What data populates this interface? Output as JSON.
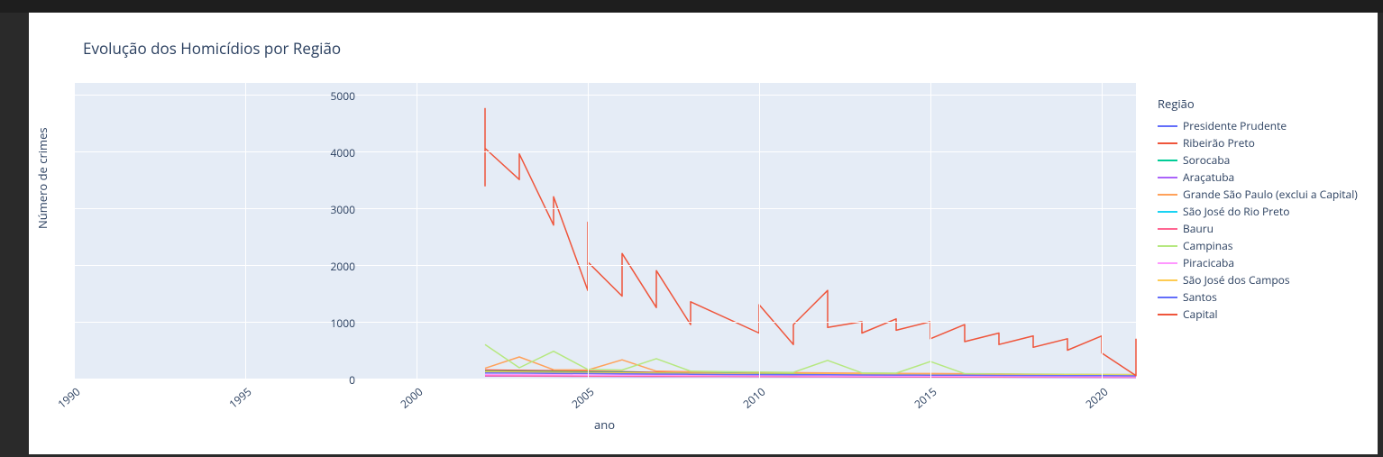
{
  "page": {
    "outer_bg": "#2a2a2a",
    "topbar_bg": "#1e1e1e",
    "card_bg": "#ffffff"
  },
  "chart": {
    "type": "line",
    "title": "Evolução dos Homicídios por Região",
    "title_color": "#2a3f5f",
    "title_fontsize": 17,
    "plot_bg": "#e5ecf6",
    "grid_color": "#ffffff",
    "tick_color": "#2a3f5f",
    "tick_fontsize": 12,
    "axis_title_fontsize": 13,
    "x_axis": {
      "title": "ano",
      "min": 1990,
      "max": 2021,
      "ticks": [
        1990,
        1995,
        2000,
        2005,
        2010,
        2015,
        2020
      ],
      "tick_rotation_deg": -40
    },
    "y_axis": {
      "title": "Número de crimes",
      "min": 0,
      "max": 5200,
      "ticks": [
        0,
        1000,
        2000,
        3000,
        4000,
        5000
      ]
    },
    "line_width": 1.5,
    "legend": {
      "title": "Região"
    },
    "series": [
      {
        "name": "Presidente Prudente",
        "color": "#636efa",
        "data": [
          {
            "x": 2002,
            "y": 55
          },
          {
            "x": 2003,
            "y": 50
          },
          {
            "x": 2004,
            "y": 48
          },
          {
            "x": 2005,
            "y": 46
          },
          {
            "x": 2006,
            "y": 45
          },
          {
            "x": 2007,
            "y": 43
          },
          {
            "x": 2008,
            "y": 42
          },
          {
            "x": 2009,
            "y": 40
          },
          {
            "x": 2010,
            "y": 38
          },
          {
            "x": 2011,
            "y": 37
          },
          {
            "x": 2012,
            "y": 36
          },
          {
            "x": 2013,
            "y": 35
          },
          {
            "x": 2014,
            "y": 33
          },
          {
            "x": 2015,
            "y": 32
          },
          {
            "x": 2016,
            "y": 30
          },
          {
            "x": 2017,
            "y": 28
          },
          {
            "x": 2018,
            "y": 27
          },
          {
            "x": 2019,
            "y": 26
          },
          {
            "x": 2020,
            "y": 25
          },
          {
            "x": 2021,
            "y": 24
          }
        ]
      },
      {
        "name": "Ribeirão Preto",
        "color": "#ef553b",
        "data": [
          {
            "x": 2002,
            "y": 150
          },
          {
            "x": 2003,
            "y": 145
          },
          {
            "x": 2004,
            "y": 140
          },
          {
            "x": 2005,
            "y": 130
          },
          {
            "x": 2006,
            "y": 120
          },
          {
            "x": 2007,
            "y": 110
          },
          {
            "x": 2008,
            "y": 100
          },
          {
            "x": 2009,
            "y": 95
          },
          {
            "x": 2010,
            "y": 90
          },
          {
            "x": 2011,
            "y": 88
          },
          {
            "x": 2012,
            "y": 85
          },
          {
            "x": 2013,
            "y": 80
          },
          {
            "x": 2014,
            "y": 75
          },
          {
            "x": 2015,
            "y": 70
          },
          {
            "x": 2016,
            "y": 65
          },
          {
            "x": 2017,
            "y": 60
          },
          {
            "x": 2018,
            "y": 58
          },
          {
            "x": 2019,
            "y": 55
          },
          {
            "x": 2020,
            "y": 52
          },
          {
            "x": 2021,
            "y": 50
          }
        ]
      },
      {
        "name": "Sorocaba",
        "color": "#00cc96",
        "data": [
          {
            "x": 2002,
            "y": 130
          },
          {
            "x": 2003,
            "y": 125
          },
          {
            "x": 2004,
            "y": 120
          },
          {
            "x": 2005,
            "y": 115
          },
          {
            "x": 2006,
            "y": 110
          },
          {
            "x": 2007,
            "y": 100
          },
          {
            "x": 2008,
            "y": 95
          },
          {
            "x": 2009,
            "y": 90
          },
          {
            "x": 2010,
            "y": 85
          },
          {
            "x": 2011,
            "y": 82
          },
          {
            "x": 2012,
            "y": 80
          },
          {
            "x": 2013,
            "y": 78
          },
          {
            "x": 2014,
            "y": 75
          },
          {
            "x": 2015,
            "y": 72
          },
          {
            "x": 2016,
            "y": 68
          },
          {
            "x": 2017,
            "y": 65
          },
          {
            "x": 2018,
            "y": 62
          },
          {
            "x": 2019,
            "y": 60
          },
          {
            "x": 2020,
            "y": 58
          },
          {
            "x": 2021,
            "y": 55
          }
        ]
      },
      {
        "name": "Araçatuba",
        "color": "#ab63fa",
        "data": [
          {
            "x": 2002,
            "y": 45
          },
          {
            "x": 2003,
            "y": 44
          },
          {
            "x": 2004,
            "y": 42
          },
          {
            "x": 2005,
            "y": 40
          },
          {
            "x": 2006,
            "y": 38
          },
          {
            "x": 2007,
            "y": 37
          },
          {
            "x": 2008,
            "y": 36
          },
          {
            "x": 2009,
            "y": 35
          },
          {
            "x": 2010,
            "y": 33
          },
          {
            "x": 2011,
            "y": 32
          },
          {
            "x": 2012,
            "y": 31
          },
          {
            "x": 2013,
            "y": 30
          },
          {
            "x": 2014,
            "y": 28
          },
          {
            "x": 2015,
            "y": 27
          },
          {
            "x": 2016,
            "y": 26
          },
          {
            "x": 2017,
            "y": 25
          },
          {
            "x": 2018,
            "y": 24
          },
          {
            "x": 2019,
            "y": 23
          },
          {
            "x": 2020,
            "y": 22
          },
          {
            "x": 2021,
            "y": 21
          }
        ]
      },
      {
        "name": "Grande São Paulo (exclui a Capital)",
        "color": "#ffa15a",
        "data": [
          {
            "x": 2002,
            "y": 180
          },
          {
            "x": 2003,
            "y": 380
          },
          {
            "x": 2004,
            "y": 155
          },
          {
            "x": 2005,
            "y": 150
          },
          {
            "x": 2006,
            "y": 330
          },
          {
            "x": 2007,
            "y": 130
          },
          {
            "x": 2008,
            "y": 120
          },
          {
            "x": 2009,
            "y": 115
          },
          {
            "x": 2010,
            "y": 110
          },
          {
            "x": 2011,
            "y": 105
          },
          {
            "x": 2012,
            "y": 100
          },
          {
            "x": 2013,
            "y": 95
          },
          {
            "x": 2014,
            "y": 92
          },
          {
            "x": 2015,
            "y": 88
          },
          {
            "x": 2016,
            "y": 85
          },
          {
            "x": 2017,
            "y": 82
          },
          {
            "x": 2018,
            "y": 78
          },
          {
            "x": 2019,
            "y": 75
          },
          {
            "x": 2020,
            "y": 72
          },
          {
            "x": 2021,
            "y": 70
          }
        ]
      },
      {
        "name": "São José do Rio Preto",
        "color": "#19d3f3",
        "data": [
          {
            "x": 2002,
            "y": 60
          },
          {
            "x": 2003,
            "y": 58
          },
          {
            "x": 2004,
            "y": 56
          },
          {
            "x": 2005,
            "y": 54
          },
          {
            "x": 2006,
            "y": 52
          },
          {
            "x": 2007,
            "y": 50
          },
          {
            "x": 2008,
            "y": 48
          },
          {
            "x": 2009,
            "y": 46
          },
          {
            "x": 2010,
            "y": 45
          },
          {
            "x": 2011,
            "y": 44
          },
          {
            "x": 2012,
            "y": 42
          },
          {
            "x": 2013,
            "y": 40
          },
          {
            "x": 2014,
            "y": 38
          },
          {
            "x": 2015,
            "y": 36
          },
          {
            "x": 2016,
            "y": 35
          },
          {
            "x": 2017,
            "y": 34
          },
          {
            "x": 2018,
            "y": 32
          },
          {
            "x": 2019,
            "y": 30
          },
          {
            "x": 2020,
            "y": 29
          },
          {
            "x": 2021,
            "y": 28
          }
        ]
      },
      {
        "name": "Bauru",
        "color": "#ff6692",
        "data": [
          {
            "x": 2002,
            "y": 50
          },
          {
            "x": 2003,
            "y": 48
          },
          {
            "x": 2004,
            "y": 46
          },
          {
            "x": 2005,
            "y": 45
          },
          {
            "x": 2006,
            "y": 44
          },
          {
            "x": 2007,
            "y": 42
          },
          {
            "x": 2008,
            "y": 40
          },
          {
            "x": 2009,
            "y": 39
          },
          {
            "x": 2010,
            "y": 38
          },
          {
            "x": 2011,
            "y": 36
          },
          {
            "x": 2012,
            "y": 35
          },
          {
            "x": 2013,
            "y": 34
          },
          {
            "x": 2014,
            "y": 33
          },
          {
            "x": 2015,
            "y": 32
          },
          {
            "x": 2016,
            "y": 30
          },
          {
            "x": 2017,
            "y": 29
          },
          {
            "x": 2018,
            "y": 28
          },
          {
            "x": 2019,
            "y": 27
          },
          {
            "x": 2020,
            "y": 26
          },
          {
            "x": 2021,
            "y": 25
          }
        ]
      },
      {
        "name": "Campinas",
        "color": "#b6e880",
        "data": [
          {
            "x": 2002,
            "y": 600
          },
          {
            "x": 2003,
            "y": 190
          },
          {
            "x": 2004,
            "y": 480
          },
          {
            "x": 2005,
            "y": 160
          },
          {
            "x": 2006,
            "y": 150
          },
          {
            "x": 2007,
            "y": 350
          },
          {
            "x": 2008,
            "y": 130
          },
          {
            "x": 2009,
            "y": 120
          },
          {
            "x": 2010,
            "y": 115
          },
          {
            "x": 2011,
            "y": 110
          },
          {
            "x": 2012,
            "y": 320
          },
          {
            "x": 2013,
            "y": 100
          },
          {
            "x": 2014,
            "y": 95
          },
          {
            "x": 2015,
            "y": 300
          },
          {
            "x": 2016,
            "y": 85
          },
          {
            "x": 2017,
            "y": 80
          },
          {
            "x": 2018,
            "y": 78
          },
          {
            "x": 2019,
            "y": 75
          },
          {
            "x": 2020,
            "y": 72
          },
          {
            "x": 2021,
            "y": 70
          }
        ]
      },
      {
        "name": "Piracicaba",
        "color": "#ff97ff",
        "data": [
          {
            "x": 2002,
            "y": 70
          },
          {
            "x": 2003,
            "y": 68
          },
          {
            "x": 2004,
            "y": 65
          },
          {
            "x": 2005,
            "y": 62
          },
          {
            "x": 2006,
            "y": 60
          },
          {
            "x": 2007,
            "y": 58
          },
          {
            "x": 2008,
            "y": 56
          },
          {
            "x": 2009,
            "y": 54
          },
          {
            "x": 2010,
            "y": 52
          },
          {
            "x": 2011,
            "y": 50
          },
          {
            "x": 2012,
            "y": 48
          },
          {
            "x": 2013,
            "y": 46
          },
          {
            "x": 2014,
            "y": 45
          },
          {
            "x": 2015,
            "y": 43
          },
          {
            "x": 2016,
            "y": 42
          },
          {
            "x": 2017,
            "y": 40
          },
          {
            "x": 2018,
            "y": 38
          },
          {
            "x": 2019,
            "y": 36
          },
          {
            "x": 2020,
            "y": 35
          },
          {
            "x": 2021,
            "y": 34
          }
        ]
      },
      {
        "name": "São José dos Campos",
        "color": "#fecb52",
        "data": [
          {
            "x": 2002,
            "y": 120
          },
          {
            "x": 2003,
            "y": 115
          },
          {
            "x": 2004,
            "y": 110
          },
          {
            "x": 2005,
            "y": 105
          },
          {
            "x": 2006,
            "y": 100
          },
          {
            "x": 2007,
            "y": 95
          },
          {
            "x": 2008,
            "y": 90
          },
          {
            "x": 2009,
            "y": 85
          },
          {
            "x": 2010,
            "y": 80
          },
          {
            "x": 2011,
            "y": 78
          },
          {
            "x": 2012,
            "y": 76
          },
          {
            "x": 2013,
            "y": 74
          },
          {
            "x": 2014,
            "y": 72
          },
          {
            "x": 2015,
            "y": 70
          },
          {
            "x": 2016,
            "y": 68
          },
          {
            "x": 2017,
            "y": 66
          },
          {
            "x": 2018,
            "y": 64
          },
          {
            "x": 2019,
            "y": 62
          },
          {
            "x": 2020,
            "y": 60
          },
          {
            "x": 2021,
            "y": 58
          }
        ]
      },
      {
        "name": "Santos",
        "color": "#636efa",
        "data": [
          {
            "x": 2002,
            "y": 100
          },
          {
            "x": 2003,
            "y": 96
          },
          {
            "x": 2004,
            "y": 92
          },
          {
            "x": 2005,
            "y": 88
          },
          {
            "x": 2006,
            "y": 84
          },
          {
            "x": 2007,
            "y": 80
          },
          {
            "x": 2008,
            "y": 76
          },
          {
            "x": 2009,
            "y": 72
          },
          {
            "x": 2010,
            "y": 70
          },
          {
            "x": 2011,
            "y": 68
          },
          {
            "x": 2012,
            "y": 66
          },
          {
            "x": 2013,
            "y": 64
          },
          {
            "x": 2014,
            "y": 62
          },
          {
            "x": 2015,
            "y": 60
          },
          {
            "x": 2016,
            "y": 58
          },
          {
            "x": 2017,
            "y": 56
          },
          {
            "x": 2018,
            "y": 54
          },
          {
            "x": 2019,
            "y": 52
          },
          {
            "x": 2020,
            "y": 50
          },
          {
            "x": 2021,
            "y": 48
          }
        ]
      },
      {
        "name": "Capital",
        "color": "#ef553b",
        "data": [
          {
            "x": 2002,
            "y": 3380
          },
          {
            "x": 2002,
            "y": 4750
          },
          {
            "x": 2002,
            "y": 4050
          },
          {
            "x": 2003,
            "y": 3500
          },
          {
            "x": 2003,
            "y": 3950
          },
          {
            "x": 2004,
            "y": 2700
          },
          {
            "x": 2004,
            "y": 3200
          },
          {
            "x": 2005,
            "y": 1550
          },
          {
            "x": 2005,
            "y": 2750
          },
          {
            "x": 2005,
            "y": 2050
          },
          {
            "x": 2006,
            "y": 1450
          },
          {
            "x": 2006,
            "y": 2200
          },
          {
            "x": 2007,
            "y": 1250
          },
          {
            "x": 2007,
            "y": 1900
          },
          {
            "x": 2008,
            "y": 950
          },
          {
            "x": 2008,
            "y": 1350
          },
          {
            "x": 2010,
            "y": 800
          },
          {
            "x": 2010,
            "y": 1300
          },
          {
            "x": 2011,
            "y": 600
          },
          {
            "x": 2011,
            "y": 950
          },
          {
            "x": 2012,
            "y": 1550
          },
          {
            "x": 2012,
            "y": 900
          },
          {
            "x": 2013,
            "y": 1000
          },
          {
            "x": 2013,
            "y": 800
          },
          {
            "x": 2014,
            "y": 1050
          },
          {
            "x": 2014,
            "y": 850
          },
          {
            "x": 2015,
            "y": 1000
          },
          {
            "x": 2015,
            "y": 700
          },
          {
            "x": 2016,
            "y": 950
          },
          {
            "x": 2016,
            "y": 650
          },
          {
            "x": 2017,
            "y": 800
          },
          {
            "x": 2017,
            "y": 600
          },
          {
            "x": 2018,
            "y": 750
          },
          {
            "x": 2018,
            "y": 550
          },
          {
            "x": 2019,
            "y": 700
          },
          {
            "x": 2019,
            "y": 500
          },
          {
            "x": 2020,
            "y": 750
          },
          {
            "x": 2020,
            "y": 450
          },
          {
            "x": 2021,
            "y": 50
          },
          {
            "x": 2021,
            "y": 700
          }
        ]
      }
    ]
  }
}
